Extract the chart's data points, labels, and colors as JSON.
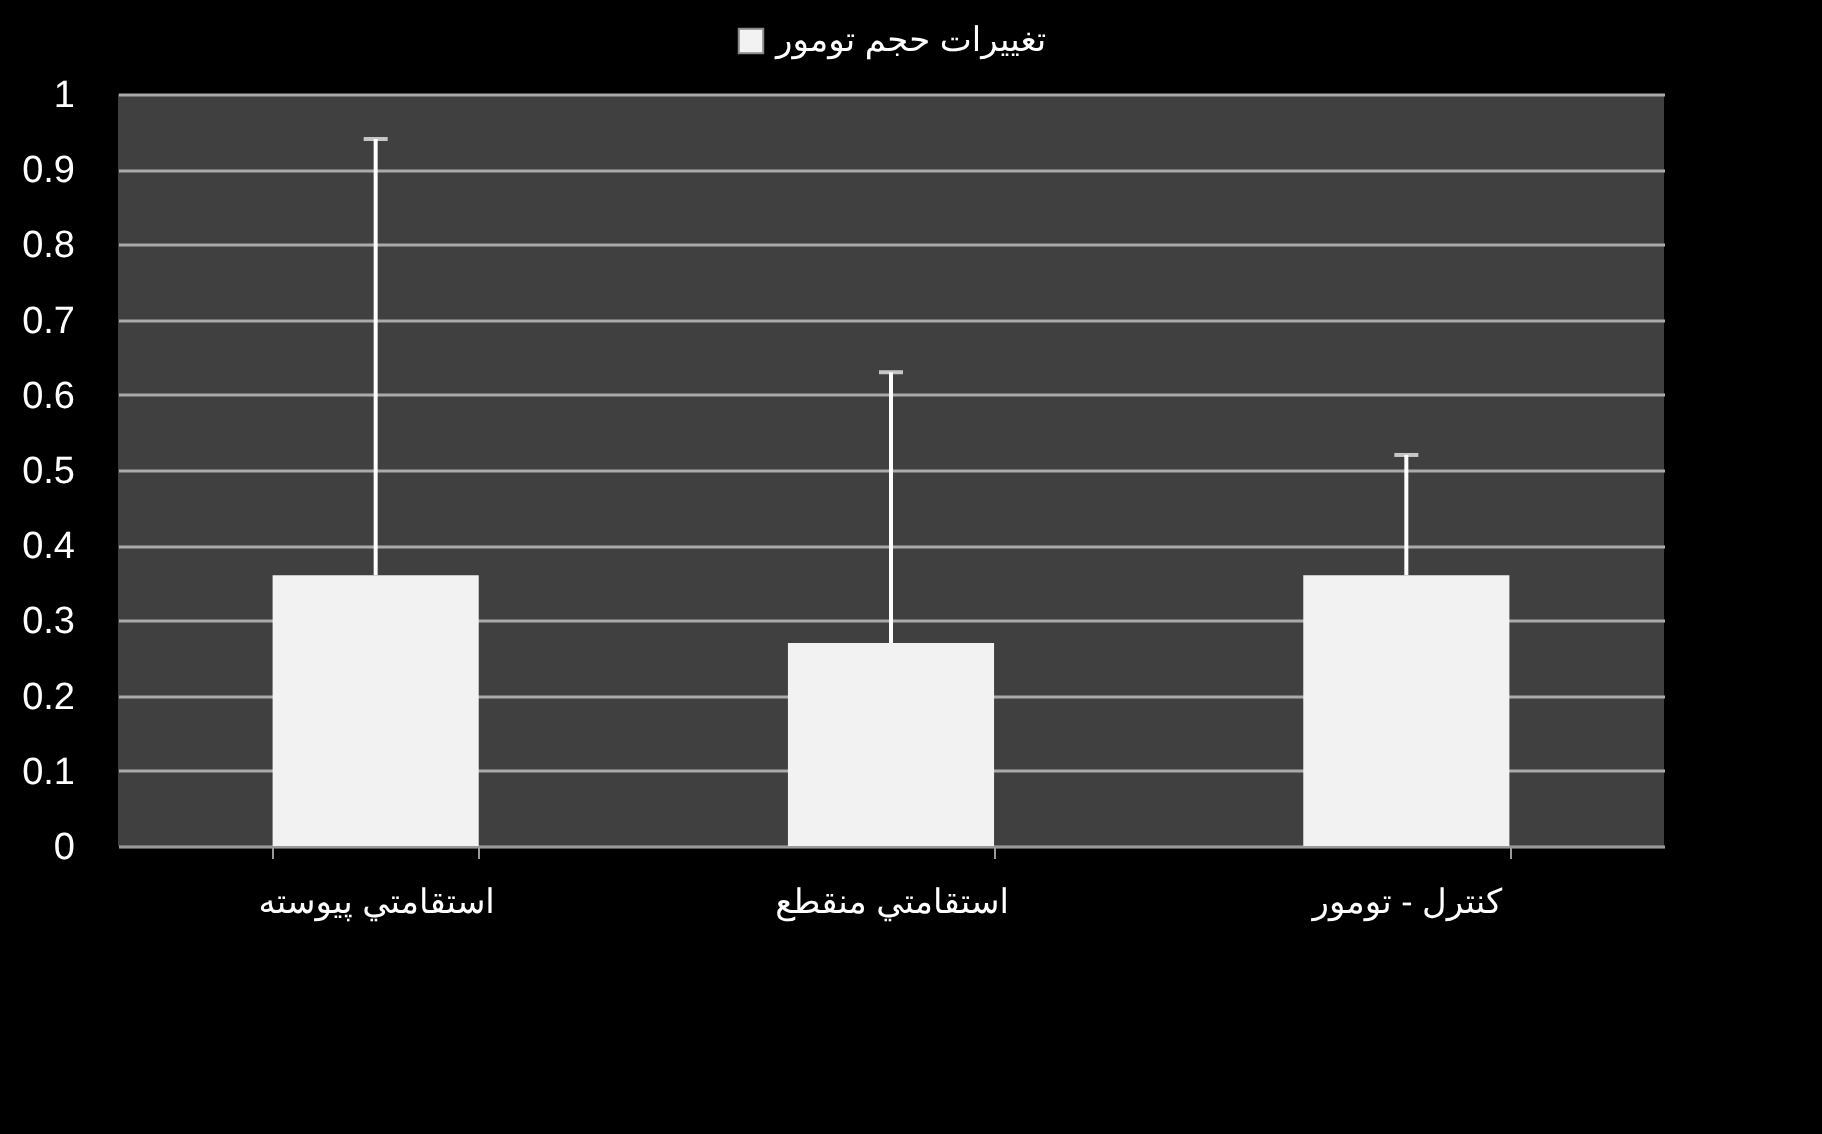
{
  "chart_data": {
    "type": "bar",
    "categories": [
      "استقامتي پيوسته",
      "استقامتي منقطع",
      "كنترل - تومور"
    ],
    "series": [
      {
        "name": "تغییرات حجم تومور",
        "color": "#f2f2f2",
        "values": [
          0.36,
          0.27,
          0.36
        ],
        "errors": [
          [
            0.36,
            0.94
          ],
          [
            0.27,
            0.63
          ],
          [
            0.36,
            0.52
          ]
        ]
      }
    ],
    "ylim": [
      0,
      1
    ],
    "yticks": [
      0,
      0.1,
      0.2,
      0.3,
      0.4,
      0.5,
      0.6,
      0.7,
      0.8,
      0.9,
      1
    ],
    "grid": "y",
    "legend": "top"
  }
}
